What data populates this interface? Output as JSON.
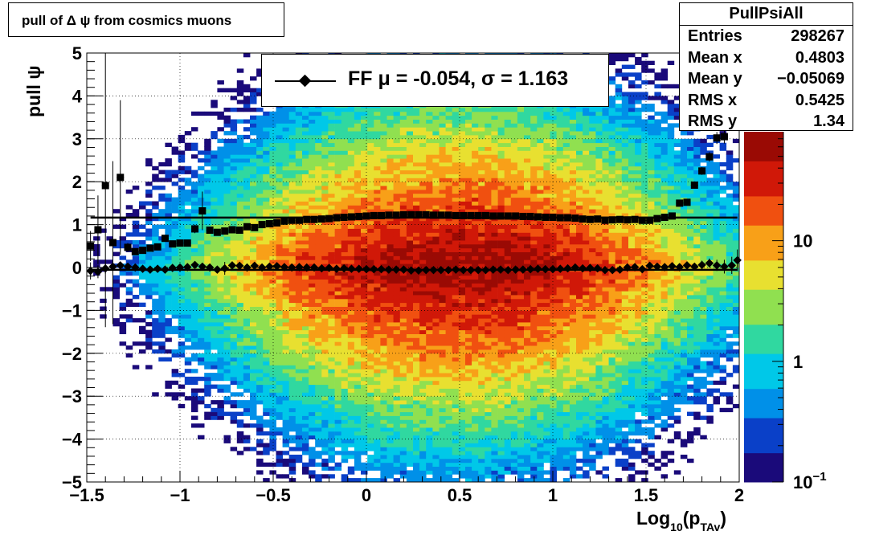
{
  "title_box": {
    "text": "pull of Δ ψ from cosmics muons"
  },
  "stats_box": {
    "name": "PullPsiAll",
    "rows": [
      {
        "label": "Entries",
        "value": "298267"
      },
      {
        "label": "Mean x",
        "value": "0.4803"
      },
      {
        "label": "Mean y",
        "value": "−0.05069"
      },
      {
        "label": "RMS x",
        "value": "0.5425"
      },
      {
        "label": "RMS y",
        "value": "1.34"
      }
    ]
  },
  "legend": {
    "text": "FF μ = -0.054, σ =   1.163"
  },
  "colors": {
    "palette": [
      "#1a0a7a",
      "#0a40c8",
      "#0090e8",
      "#00c8e8",
      "#30d8a0",
      "#90e050",
      "#e8e030",
      "#f8a018",
      "#f05010",
      "#d01808",
      "#9a0a04"
    ],
    "marker": "#000000"
  },
  "chart_data": {
    "type": "heatmap",
    "title": "",
    "xlabel": "Log10(pTAv)",
    "xlabel_main": "Log",
    "xlabel_sub1": "10",
    "xlabel_mid": "(p",
    "xlabel_sub2": "TAv",
    "xlabel_end": ")",
    "ylabel": "pull ψ",
    "xlim": [
      -1.5,
      2.0
    ],
    "ylim": [
      -5,
      5
    ],
    "x_ticks": [
      -1.5,
      -1,
      -0.5,
      0,
      0.5,
      1,
      1.5,
      2
    ],
    "x_tick_labels": [
      "−1.5",
      "−1",
      "−0.5",
      "0",
      "0.5",
      "1",
      "1.5",
      "2"
    ],
    "y_ticks": [
      -5,
      -4,
      -3,
      -2,
      -1,
      0,
      1,
      2,
      3,
      4,
      5
    ],
    "y_tick_labels": [
      "−5",
      "−4",
      "−3",
      "−2",
      "−1",
      "0",
      "1",
      "2",
      "3",
      "4",
      "5"
    ],
    "z_scale": "log",
    "z_range": [
      0.1,
      80
    ],
    "z_tick_labels": [
      {
        "value": 10,
        "label": "10"
      },
      {
        "value": 1,
        "label": "1"
      },
      {
        "value": 0.1,
        "label": "10",
        "exp": "−1"
      }
    ],
    "grid": true,
    "heatmap_model": {
      "peak_x": 0.5,
      "sigma_x": 0.55,
      "sigma_y": 1.1,
      "peak_value": 70
    },
    "series": [
      {
        "name": "mean",
        "marker": "diamond",
        "fit_line": -0.054,
        "points": [
          {
            "x": -1.48,
            "y": -0.08,
            "e": 0.2
          },
          {
            "x": -1.44,
            "y": -0.1,
            "e": 0.15
          },
          {
            "x": -1.4,
            "y": -0.02,
            "e": 0.12
          },
          {
            "x": -1.36,
            "y": 0.02,
            "e": 0.1
          },
          {
            "x": -1.32,
            "y": 0.05,
            "e": 0.08
          },
          {
            "x": -1.28,
            "y": 0.02,
            "e": 0.05
          },
          {
            "x": -1.24,
            "y": 0.0,
            "e": 0.04
          },
          {
            "x": -1.2,
            "y": -0.03,
            "e": 0.03
          },
          {
            "x": -1.16,
            "y": -0.05,
            "e": 0.03
          },
          {
            "x": -1.12,
            "y": -0.03,
            "e": 0.03
          },
          {
            "x": -1.08,
            "y": -0.05,
            "e": 0.02
          },
          {
            "x": -1.04,
            "y": -0.01,
            "e": 0.02
          },
          {
            "x": -1.0,
            "y": 0.0,
            "e": 0.02
          },
          {
            "x": -0.96,
            "y": 0.01,
            "e": 0.02
          },
          {
            "x": -0.92,
            "y": 0.06,
            "e": 0.05
          },
          {
            "x": -0.88,
            "y": 0.02,
            "e": 0.02
          },
          {
            "x": -0.84,
            "y": 0.0,
            "e": 0.02
          },
          {
            "x": -0.8,
            "y": -0.05,
            "e": 0.02
          },
          {
            "x": -0.76,
            "y": -0.02,
            "e": 0.15
          },
          {
            "x": -0.72,
            "y": 0.05,
            "e": 0.02
          },
          {
            "x": -0.68,
            "y": 0.04,
            "e": 0.02
          },
          {
            "x": -0.64,
            "y": 0.0,
            "e": 0.02
          },
          {
            "x": -0.6,
            "y": 0.04,
            "e": 0.02
          },
          {
            "x": -0.56,
            "y": 0.0,
            "e": 0.02
          },
          {
            "x": -0.52,
            "y": 0.02,
            "e": 0.02
          },
          {
            "x": -0.48,
            "y": 0.03,
            "e": 0.02
          },
          {
            "x": -0.44,
            "y": 0.01,
            "e": 0.02
          },
          {
            "x": -0.4,
            "y": 0.0,
            "e": 0.02
          },
          {
            "x": -0.36,
            "y": 0.01,
            "e": 0.02
          },
          {
            "x": -0.32,
            "y": 0.0,
            "e": 0.02
          },
          {
            "x": -0.28,
            "y": 0.0,
            "e": 0.02
          },
          {
            "x": -0.24,
            "y": -0.02,
            "e": 0.02
          },
          {
            "x": -0.2,
            "y": -0.01,
            "e": 0.02
          },
          {
            "x": -0.16,
            "y": -0.03,
            "e": 0.02
          },
          {
            "x": -0.12,
            "y": -0.02,
            "e": 0.02
          },
          {
            "x": -0.08,
            "y": -0.03,
            "e": 0.02
          },
          {
            "x": -0.04,
            "y": -0.03,
            "e": 0.02
          },
          {
            "x": 0.0,
            "y": -0.04,
            "e": 0.02
          },
          {
            "x": 0.04,
            "y": -0.04,
            "e": 0.02
          },
          {
            "x": 0.08,
            "y": -0.04,
            "e": 0.02
          },
          {
            "x": 0.12,
            "y": -0.05,
            "e": 0.02
          },
          {
            "x": 0.16,
            "y": -0.05,
            "e": 0.02
          },
          {
            "x": 0.2,
            "y": -0.05,
            "e": 0.02
          },
          {
            "x": 0.24,
            "y": -0.07,
            "e": 0.02
          },
          {
            "x": 0.28,
            "y": -0.07,
            "e": 0.02
          },
          {
            "x": 0.32,
            "y": -0.06,
            "e": 0.02
          },
          {
            "x": 0.36,
            "y": -0.06,
            "e": 0.02
          },
          {
            "x": 0.4,
            "y": -0.06,
            "e": 0.02
          },
          {
            "x": 0.44,
            "y": -0.06,
            "e": 0.02
          },
          {
            "x": 0.48,
            "y": -0.05,
            "e": 0.02
          },
          {
            "x": 0.52,
            "y": -0.06,
            "e": 0.02
          },
          {
            "x": 0.56,
            "y": -0.06,
            "e": 0.02
          },
          {
            "x": 0.6,
            "y": -0.06,
            "e": 0.02
          },
          {
            "x": 0.64,
            "y": -0.06,
            "e": 0.02
          },
          {
            "x": 0.68,
            "y": -0.05,
            "e": 0.02
          },
          {
            "x": 0.72,
            "y": -0.05,
            "e": 0.02
          },
          {
            "x": 0.76,
            "y": -0.06,
            "e": 0.02
          },
          {
            "x": 0.8,
            "y": -0.05,
            "e": 0.02
          },
          {
            "x": 0.84,
            "y": -0.05,
            "e": 0.02
          },
          {
            "x": 0.88,
            "y": -0.04,
            "e": 0.02
          },
          {
            "x": 0.92,
            "y": -0.03,
            "e": 0.02
          },
          {
            "x": 0.96,
            "y": -0.04,
            "e": 0.02
          },
          {
            "x": 1.0,
            "y": -0.04,
            "e": 0.02
          },
          {
            "x": 1.04,
            "y": -0.03,
            "e": 0.02
          },
          {
            "x": 1.08,
            "y": -0.02,
            "e": 0.02
          },
          {
            "x": 1.12,
            "y": 0.0,
            "e": 0.03
          },
          {
            "x": 1.16,
            "y": -0.02,
            "e": 0.03
          },
          {
            "x": 1.2,
            "y": -0.01,
            "e": 0.03
          },
          {
            "x": 1.24,
            "y": -0.02,
            "e": 0.03
          },
          {
            "x": 1.28,
            "y": -0.06,
            "e": 0.03
          },
          {
            "x": 1.32,
            "y": -0.06,
            "e": 0.03
          },
          {
            "x": 1.36,
            "y": -0.05,
            "e": 0.03
          },
          {
            "x": 1.4,
            "y": 0.0,
            "e": 0.04
          },
          {
            "x": 1.44,
            "y": 0.01,
            "e": 0.04
          },
          {
            "x": 1.48,
            "y": -0.04,
            "e": 0.04
          },
          {
            "x": 1.52,
            "y": 0.04,
            "e": 0.05
          },
          {
            "x": 1.56,
            "y": 0.02,
            "e": 0.05
          },
          {
            "x": 1.6,
            "y": 0.01,
            "e": 0.06
          },
          {
            "x": 1.64,
            "y": 0.03,
            "e": 0.06
          },
          {
            "x": 1.68,
            "y": 0.01,
            "e": 0.07
          },
          {
            "x": 1.72,
            "y": 0.05,
            "e": 0.08
          },
          {
            "x": 1.76,
            "y": 0.02,
            "e": 0.09
          },
          {
            "x": 1.8,
            "y": 0.06,
            "e": 0.1
          },
          {
            "x": 1.84,
            "y": 0.1,
            "e": 0.11
          },
          {
            "x": 1.88,
            "y": 0.05,
            "e": 0.13
          },
          {
            "x": 1.92,
            "y": 0.02,
            "e": 0.16
          },
          {
            "x": 1.96,
            "y": 0.05,
            "e": 0.2
          },
          {
            "x": 1.99,
            "y": 0.17,
            "e": 0.25
          }
        ]
      },
      {
        "name": "rms",
        "marker": "square",
        "fit_line": 1.163,
        "points": [
          {
            "x": -1.48,
            "y": 0.5,
            "e": 0.35
          },
          {
            "x": -1.44,
            "y": 0.88,
            "e": 0.8
          },
          {
            "x": -1.4,
            "y": 1.91,
            "e": 3.3
          },
          {
            "x": -1.36,
            "y": 0.58,
            "e": 1.9
          },
          {
            "x": -1.32,
            "y": 2.1,
            "e": 1.8
          },
          {
            "x": -1.28,
            "y": 0.47,
            "e": 0.1
          },
          {
            "x": -1.24,
            "y": 0.37,
            "e": 0.06
          },
          {
            "x": -1.2,
            "y": 0.4,
            "e": 0.05
          },
          {
            "x": -1.16,
            "y": 0.45,
            "e": 0.05
          },
          {
            "x": -1.12,
            "y": 0.48,
            "e": 0.05
          },
          {
            "x": -1.08,
            "y": 0.68,
            "e": 0.05
          },
          {
            "x": -1.04,
            "y": 0.55,
            "e": 0.05
          },
          {
            "x": -1.0,
            "y": 0.57,
            "e": 0.05
          },
          {
            "x": -0.96,
            "y": 0.57,
            "e": 0.05
          },
          {
            "x": -0.92,
            "y": 0.9,
            "e": 0.1
          },
          {
            "x": -0.88,
            "y": 1.32,
            "e": 0.45
          },
          {
            "x": -0.84,
            "y": 0.87,
            "e": 0.05
          },
          {
            "x": -0.8,
            "y": 0.82,
            "e": 0.05
          },
          {
            "x": -0.76,
            "y": 0.85,
            "e": 0.05
          },
          {
            "x": -0.72,
            "y": 0.88,
            "e": 0.05
          },
          {
            "x": -0.68,
            "y": 0.87,
            "e": 0.04
          },
          {
            "x": -0.64,
            "y": 0.95,
            "e": 0.04
          },
          {
            "x": -0.6,
            "y": 0.93,
            "e": 0.04
          },
          {
            "x": -0.56,
            "y": 1.0,
            "e": 0.04
          },
          {
            "x": -0.52,
            "y": 1.02,
            "e": 0.04
          },
          {
            "x": -0.48,
            "y": 1.04,
            "e": 0.03
          },
          {
            "x": -0.44,
            "y": 1.08,
            "e": 0.03
          },
          {
            "x": -0.4,
            "y": 1.1,
            "e": 0.03
          },
          {
            "x": -0.36,
            "y": 1.1,
            "e": 0.03
          },
          {
            "x": -0.32,
            "y": 1.12,
            "e": 0.03
          },
          {
            "x": -0.28,
            "y": 1.12,
            "e": 0.03
          },
          {
            "x": -0.24,
            "y": 1.13,
            "e": 0.03
          },
          {
            "x": -0.2,
            "y": 1.14,
            "e": 0.03
          },
          {
            "x": -0.16,
            "y": 1.16,
            "e": 0.03
          },
          {
            "x": -0.12,
            "y": 1.17,
            "e": 0.03
          },
          {
            "x": -0.08,
            "y": 1.18,
            "e": 0.03
          },
          {
            "x": -0.04,
            "y": 1.19,
            "e": 0.03
          },
          {
            "x": 0.0,
            "y": 1.2,
            "e": 0.03
          },
          {
            "x": 0.04,
            "y": 1.21,
            "e": 0.03
          },
          {
            "x": 0.08,
            "y": 1.21,
            "e": 0.03
          },
          {
            "x": 0.12,
            "y": 1.22,
            "e": 0.03
          },
          {
            "x": 0.16,
            "y": 1.22,
            "e": 0.03
          },
          {
            "x": 0.2,
            "y": 1.23,
            "e": 0.03
          },
          {
            "x": 0.24,
            "y": 1.23,
            "e": 0.03
          },
          {
            "x": 0.28,
            "y": 1.23,
            "e": 0.03
          },
          {
            "x": 0.32,
            "y": 1.23,
            "e": 0.03
          },
          {
            "x": 0.36,
            "y": 1.22,
            "e": 0.03
          },
          {
            "x": 0.4,
            "y": 1.22,
            "e": 0.03
          },
          {
            "x": 0.44,
            "y": 1.22,
            "e": 0.03
          },
          {
            "x": 0.48,
            "y": 1.21,
            "e": 0.03
          },
          {
            "x": 0.52,
            "y": 1.21,
            "e": 0.03
          },
          {
            "x": 0.56,
            "y": 1.21,
            "e": 0.03
          },
          {
            "x": 0.6,
            "y": 1.21,
            "e": 0.03
          },
          {
            "x": 0.64,
            "y": 1.21,
            "e": 0.03
          },
          {
            "x": 0.68,
            "y": 1.2,
            "e": 0.03
          },
          {
            "x": 0.72,
            "y": 1.2,
            "e": 0.03
          },
          {
            "x": 0.76,
            "y": 1.2,
            "e": 0.03
          },
          {
            "x": 0.8,
            "y": 1.2,
            "e": 0.03
          },
          {
            "x": 0.84,
            "y": 1.19,
            "e": 0.03
          },
          {
            "x": 0.88,
            "y": 1.19,
            "e": 0.03
          },
          {
            "x": 0.92,
            "y": 1.18,
            "e": 0.03
          },
          {
            "x": 0.96,
            "y": 1.17,
            "e": 0.03
          },
          {
            "x": 1.0,
            "y": 1.17,
            "e": 0.03
          },
          {
            "x": 1.04,
            "y": 1.16,
            "e": 0.03
          },
          {
            "x": 1.08,
            "y": 1.16,
            "e": 0.03
          },
          {
            "x": 1.12,
            "y": 1.15,
            "e": 0.03
          },
          {
            "x": 1.16,
            "y": 1.13,
            "e": 0.03
          },
          {
            "x": 1.2,
            "y": 1.12,
            "e": 0.03
          },
          {
            "x": 1.24,
            "y": 1.13,
            "e": 0.03
          },
          {
            "x": 1.28,
            "y": 1.1,
            "e": 0.03
          },
          {
            "x": 1.32,
            "y": 1.11,
            "e": 0.03
          },
          {
            "x": 1.36,
            "y": 1.12,
            "e": 0.03
          },
          {
            "x": 1.4,
            "y": 1.11,
            "e": 0.03
          },
          {
            "x": 1.44,
            "y": 1.12,
            "e": 0.04
          },
          {
            "x": 1.48,
            "y": 1.1,
            "e": 0.04
          },
          {
            "x": 1.52,
            "y": 1.1,
            "e": 0.04
          },
          {
            "x": 1.56,
            "y": 1.14,
            "e": 0.05
          },
          {
            "x": 1.6,
            "y": 1.17,
            "e": 0.05
          },
          {
            "x": 1.64,
            "y": 1.2,
            "e": 0.06
          },
          {
            "x": 1.68,
            "y": 1.5,
            "e": 0.07
          },
          {
            "x": 1.72,
            "y": 1.52,
            "e": 0.07
          },
          {
            "x": 1.76,
            "y": 1.92,
            "e": 0.08
          },
          {
            "x": 1.8,
            "y": 2.25,
            "e": 0.09
          },
          {
            "x": 1.84,
            "y": 2.58,
            "e": 0.11
          },
          {
            "x": 1.88,
            "y": 3.02,
            "e": 0.14
          },
          {
            "x": 1.92,
            "y": 3.05,
            "e": 0.16
          }
        ]
      }
    ]
  }
}
